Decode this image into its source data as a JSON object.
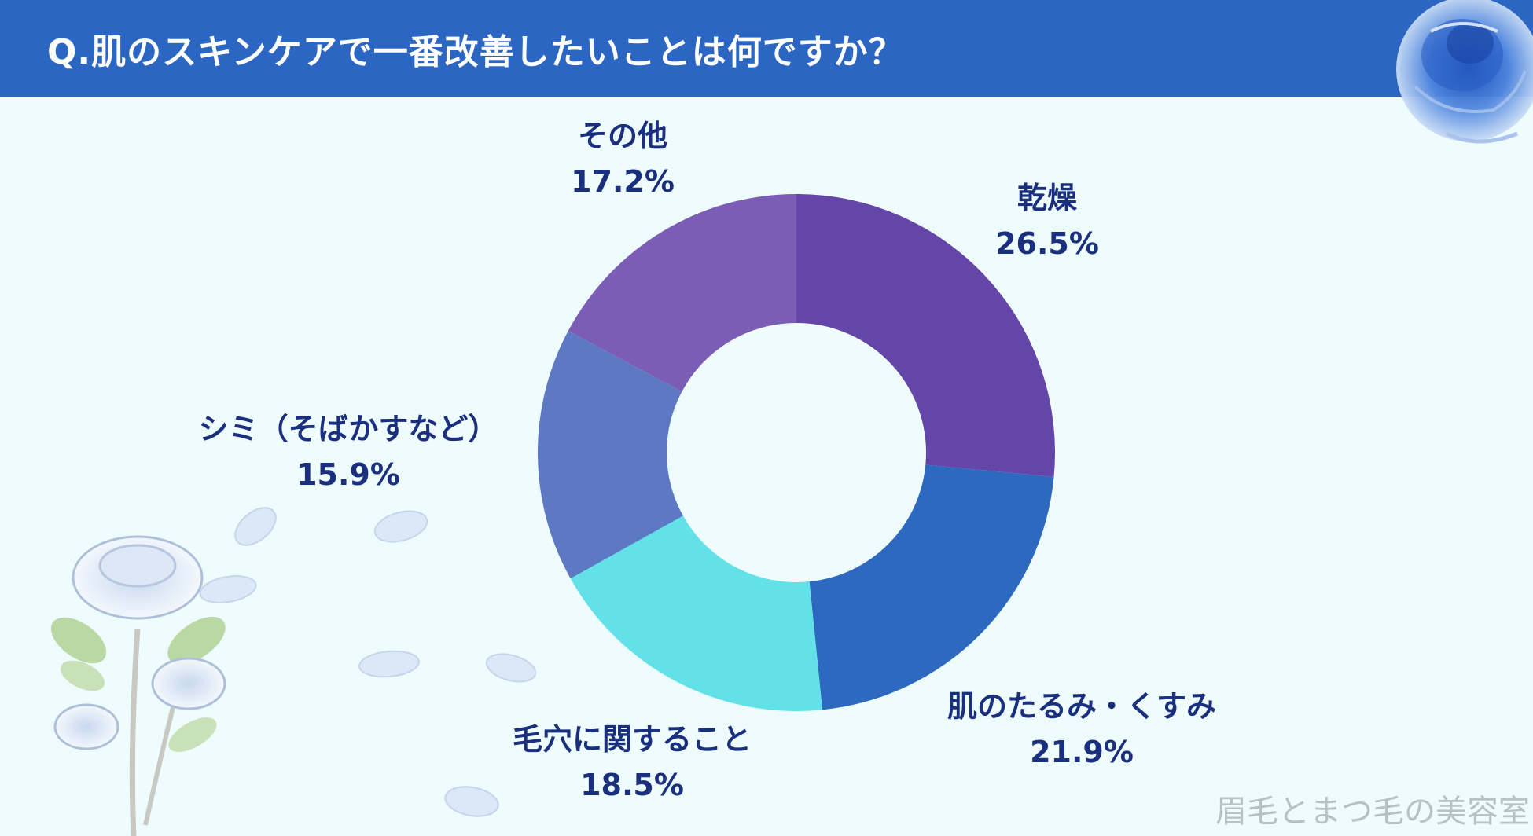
{
  "header": {
    "title": "Q.肌のスキンケアで一番改善したいことは何ですか？"
  },
  "colors": {
    "header_bg": "#2b66c3",
    "background": "#eefcfd",
    "label_text": "#1a2f7e"
  },
  "chart_data": {
    "type": "pie",
    "title": "Q.肌のスキンケアで一番改善したいことは何ですか？",
    "donut": true,
    "slices": [
      {
        "label": "乾燥",
        "value": 26.5,
        "value_label": "26.5%",
        "color": "#6446a8"
      },
      {
        "label": "肌のたるみ・くすみ",
        "value": 21.9,
        "value_label": "21.9%",
        "color": "#2e69c0"
      },
      {
        "label": "毛穴に関すること",
        "value": 18.5,
        "value_label": "18.5%",
        "color": "#62e2e8"
      },
      {
        "label": "シミ（そばかすなど）",
        "value": 15.9,
        "value_label": "15.9%",
        "color": "#5d79c4"
      },
      {
        "label": "その他",
        "value": 17.2,
        "value_label": "17.2%",
        "color": "#7c5db5"
      }
    ]
  },
  "decorations": {
    "rose_icon": "blue-rose-icon",
    "petal_icon": "petal-icon"
  },
  "watermark": {
    "text": "眉毛とまつ毛の美容室"
  }
}
